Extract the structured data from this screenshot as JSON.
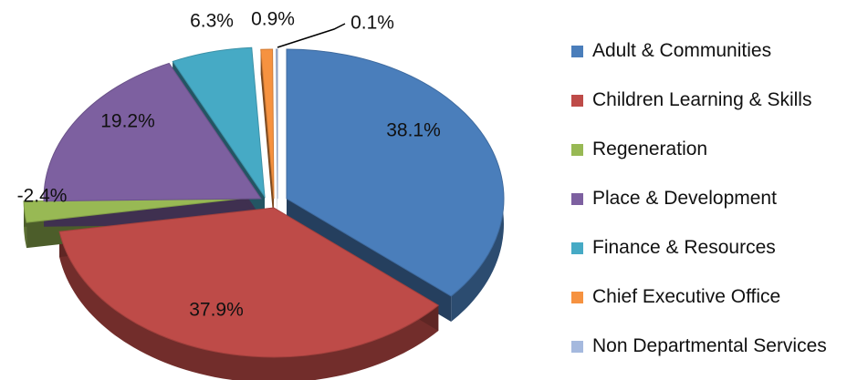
{
  "chart_data": {
    "type": "pie",
    "title": "",
    "legend_position": "right",
    "series": [
      {
        "name": "Adult & Communities",
        "value": 38.1,
        "label": "38.1%",
        "color": "#4a7ebb"
      },
      {
        "name": "Children Learning & Skills",
        "value": 37.9,
        "label": "37.9%",
        "color": "#be4b48"
      },
      {
        "name": "Regeneration",
        "value": -2.4,
        "label": "-2.4%",
        "color": "#98b954"
      },
      {
        "name": "Place & Development",
        "value": 19.2,
        "label": "19.2%",
        "color": "#7d60a0"
      },
      {
        "name": "Finance & Resources",
        "value": 6.3,
        "label": "6.3%",
        "color": "#46aac5"
      },
      {
        "name": "Chief Executive Office",
        "value": 0.9,
        "label": "0.9%",
        "color": "#f69240"
      },
      {
        "name": "Non Departmental Services",
        "value": 0.1,
        "label": "0.1%",
        "color": "#a5b9de"
      }
    ]
  }
}
